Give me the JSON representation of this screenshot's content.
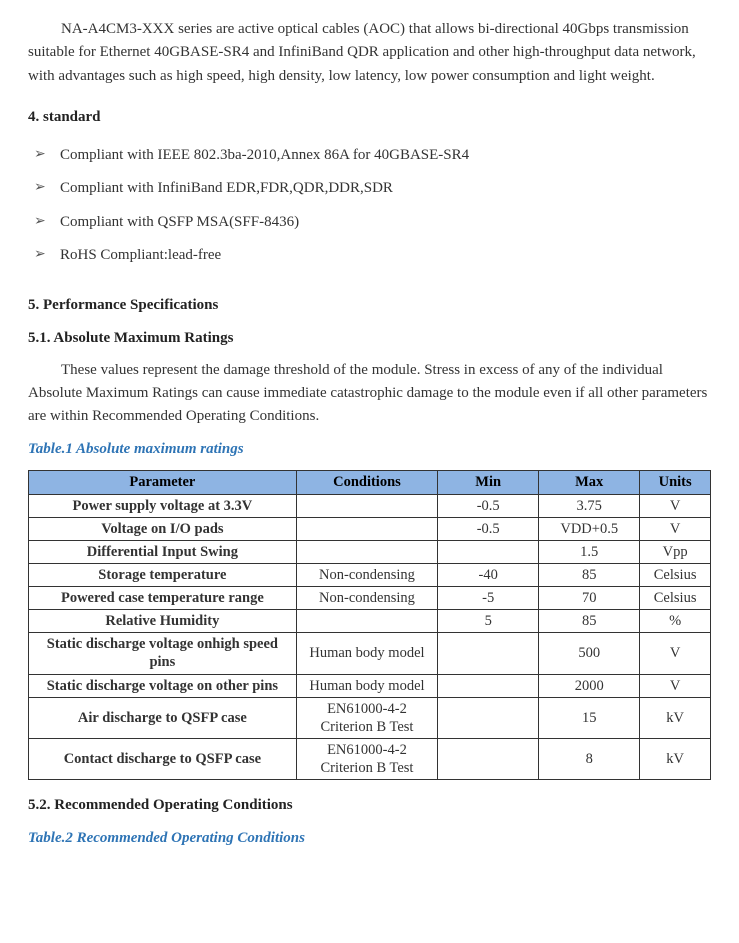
{
  "intro": "NA-A4CM3-XXX series are active optical cables (AOC) that allows bi-directional 40Gbps transmission suitable for Ethernet 40GBASE-SR4 and InfiniBand QDR application and other high-throughput data network, with advantages such as high speed, high density, low latency, low power consumption and light weight.",
  "section4": {
    "title": "4. standard",
    "bullets": [
      "Compliant with IEEE 802.3ba-2010,Annex 86A for 40GBASE-SR4",
      "Compliant with InfiniBand EDR,FDR,QDR,DDR,SDR",
      "Compliant with QSFP MSA(SFF-8436)",
      "RoHS Compliant:lead-free"
    ]
  },
  "section5": {
    "title": "5. Performance Specifications",
    "s51_title": "5.1. Absolute Maximum Ratings",
    "s51_para": "These values represent the damage threshold of the module. Stress in excess of any of the individual Absolute Maximum Ratings can cause immediate catastrophic damage to the module even if all other parameters are within Recommended Operating Conditions.",
    "table1_caption": "Table.1 Absolute maximum ratings",
    "s52_title": "5.2. Recommended Operating Conditions",
    "table2_caption": "Table.2 Recommended Operating Conditions"
  },
  "table1": {
    "header_bg": "#8eb4e3",
    "border_color": "#333333",
    "col_widths": [
      "265px",
      "140px",
      "100px",
      "100px",
      "70px"
    ],
    "headers": [
      "Parameter",
      "Conditions",
      "Min",
      "Max",
      "Units"
    ],
    "rows": [
      {
        "param": "Power supply voltage at 3.3V",
        "cond": "",
        "min": "-0.5",
        "max": "3.75",
        "units": "V"
      },
      {
        "param": "Voltage on I/O pads",
        "cond": "",
        "min": "-0.5",
        "max": "VDD+0.5",
        "units": "V"
      },
      {
        "param": "Differential Input Swing",
        "cond": "",
        "min": "",
        "max": "1.5",
        "units": "Vpp"
      },
      {
        "param": "Storage temperature",
        "cond": "Non-condensing",
        "min": "-40",
        "max": "85",
        "units": "Celsius"
      },
      {
        "param": "Powered case temperature range",
        "cond": "Non-condensing",
        "min": "-5",
        "max": "70",
        "units": "Celsius"
      },
      {
        "param": "Relative Humidity",
        "cond": "",
        "min": "5",
        "max": "85",
        "units": "%"
      },
      {
        "param": "Static discharge voltage onhigh speed pins",
        "cond": "Human body model",
        "min": "",
        "max": "500",
        "units": "V"
      },
      {
        "param": "Static discharge voltage on other pins",
        "cond": "Human body model",
        "min": "",
        "max": "2000",
        "units": "V"
      },
      {
        "param": "Air discharge to QSFP case",
        "cond": "EN61000-4-2 Criterion B Test",
        "min": "",
        "max": "15",
        "units": "kV"
      },
      {
        "param": "Contact discharge to QSFP case",
        "cond": "EN61000-4-2 Criterion B Test",
        "min": "",
        "max": "8",
        "units": "kV"
      }
    ]
  }
}
